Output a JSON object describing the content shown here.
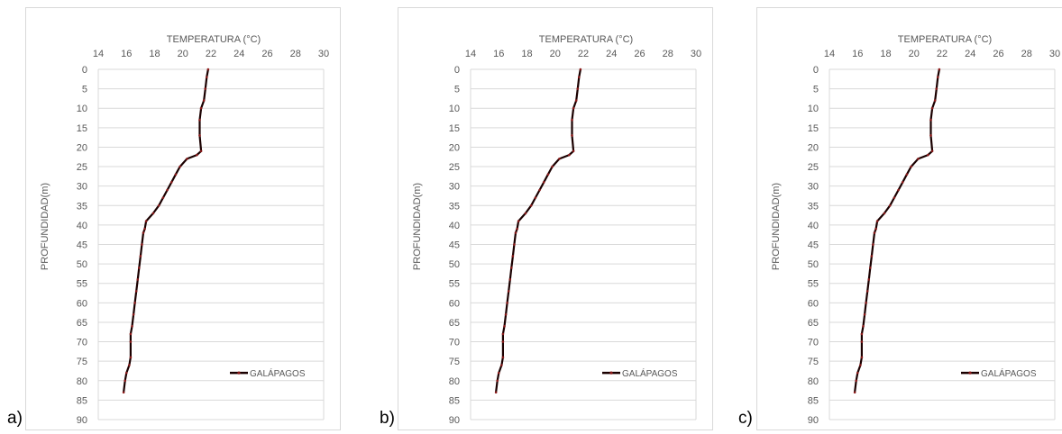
{
  "panels": [
    {
      "letter": "a)"
    },
    {
      "letter": "b)"
    },
    {
      "letter": "c)"
    }
  ],
  "colors": {
    "series_line": "#1a0000",
    "series_marker": "#8b1a1a",
    "gridline": "#d9d9d9",
    "tick_text": "#595959",
    "border": "#d9d9d9"
  },
  "chart_data": [
    {
      "type": "line",
      "xlabel": "TEMPERATURA (°C)",
      "ylabel": "PROFUNDIDAD(m)",
      "x_axis_position": "top",
      "y_axis_reversed": true,
      "xlim": [
        14,
        30
      ],
      "ylim": [
        0,
        90
      ],
      "x_ticks": [
        "14",
        "16",
        "18",
        "20",
        "22",
        "24",
        "26",
        "28",
        "30"
      ],
      "y_ticks": [
        "0",
        "5",
        "10",
        "15",
        "20",
        "25",
        "30",
        "35",
        "40",
        "45",
        "50",
        "55",
        "60",
        "65",
        "70",
        "75",
        "80",
        "85",
        "90"
      ],
      "grid": "horizontal",
      "legend": "bottom-right",
      "series": [
        {
          "name": "GALÁPAGOS",
          "temperature": [
            21.8,
            21.7,
            21.6,
            21.5,
            21.3,
            21.2,
            21.2,
            21.3,
            21.0,
            20.3,
            19.8,
            19.5,
            19.2,
            18.9,
            18.6,
            18.3,
            17.9,
            17.4,
            17.3,
            17.2,
            17.1,
            17.0,
            16.9,
            16.8,
            16.7,
            16.6,
            16.5,
            16.4,
            16.3,
            16.3,
            16.3,
            16.2,
            16.0,
            15.9,
            15.8
          ],
          "depth": [
            0,
            2,
            5,
            8,
            10,
            13,
            17,
            21,
            22,
            23,
            25,
            27,
            29,
            31,
            33,
            35,
            37,
            39,
            41,
            42,
            45,
            48,
            51,
            54,
            57,
            60,
            63,
            66,
            68,
            70,
            74,
            76,
            78,
            80,
            83
          ]
        }
      ]
    },
    {
      "type": "line",
      "xlabel": "TEMPERATURA (°C)",
      "ylabel": "PROFUNDIDAD(m)",
      "x_axis_position": "top",
      "y_axis_reversed": true,
      "xlim": [
        14,
        30
      ],
      "ylim": [
        0,
        90
      ],
      "x_ticks": [
        "14",
        "16",
        "18",
        "20",
        "22",
        "24",
        "26",
        "28",
        "30"
      ],
      "y_ticks": [
        "0",
        "5",
        "10",
        "15",
        "20",
        "25",
        "30",
        "35",
        "40",
        "45",
        "50",
        "55",
        "60",
        "65",
        "70",
        "75",
        "80",
        "85",
        "90"
      ],
      "grid": "horizontal",
      "legend": "bottom-right",
      "series": [
        {
          "name": "GALÁPAGOS",
          "temperature": [
            21.8,
            21.7,
            21.6,
            21.5,
            21.3,
            21.2,
            21.2,
            21.3,
            21.0,
            20.3,
            19.8,
            19.5,
            19.2,
            18.9,
            18.6,
            18.3,
            17.9,
            17.4,
            17.3,
            17.2,
            17.1,
            17.0,
            16.9,
            16.8,
            16.7,
            16.6,
            16.5,
            16.4,
            16.3,
            16.3,
            16.3,
            16.2,
            16.0,
            15.9,
            15.8
          ],
          "depth": [
            0,
            2,
            5,
            8,
            10,
            13,
            17,
            21,
            22,
            23,
            25,
            27,
            29,
            31,
            33,
            35,
            37,
            39,
            41,
            42,
            45,
            48,
            51,
            54,
            57,
            60,
            63,
            66,
            68,
            70,
            74,
            76,
            78,
            80,
            83
          ]
        }
      ]
    },
    {
      "type": "line",
      "xlabel": "TEMPERATURA (°C)",
      "ylabel": "PROFUNDIDAD(m)",
      "x_axis_position": "top",
      "y_axis_reversed": true,
      "xlim": [
        14,
        30
      ],
      "ylim": [
        0,
        90
      ],
      "x_ticks": [
        "14",
        "16",
        "18",
        "20",
        "22",
        "24",
        "26",
        "28",
        "30"
      ],
      "y_ticks": [
        "0",
        "5",
        "10",
        "15",
        "20",
        "25",
        "30",
        "35",
        "40",
        "45",
        "50",
        "55",
        "60",
        "65",
        "70",
        "75",
        "80",
        "85",
        "90"
      ],
      "grid": "horizontal",
      "legend": "bottom-right",
      "series": [
        {
          "name": "GALÁPAGOS",
          "temperature": [
            21.8,
            21.7,
            21.6,
            21.5,
            21.3,
            21.2,
            21.2,
            21.3,
            21.0,
            20.3,
            19.8,
            19.5,
            19.2,
            18.9,
            18.6,
            18.3,
            17.9,
            17.4,
            17.3,
            17.2,
            17.1,
            17.0,
            16.9,
            16.8,
            16.7,
            16.6,
            16.5,
            16.4,
            16.3,
            16.3,
            16.3,
            16.2,
            16.0,
            15.9,
            15.8
          ],
          "depth": [
            0,
            2,
            5,
            8,
            10,
            13,
            17,
            21,
            22,
            23,
            25,
            27,
            29,
            31,
            33,
            35,
            37,
            39,
            41,
            42,
            45,
            48,
            51,
            54,
            57,
            60,
            63,
            66,
            68,
            70,
            74,
            76,
            78,
            80,
            83
          ]
        }
      ]
    }
  ]
}
